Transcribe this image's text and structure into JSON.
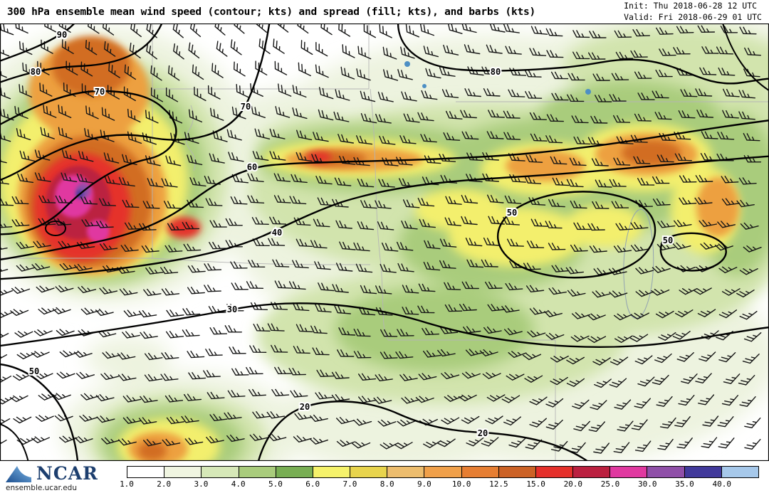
{
  "header": {
    "title": "300 hPa ensemble mean wind speed (contour; kts) and spread (fill; kts), and barbs (kts)",
    "init": "Init: Thu 2018-06-28 12 UTC",
    "valid": "Valid: Fri 2018-06-29 01 UTC"
  },
  "footer": {
    "brand": "NCAR",
    "url": "ensemble.ucar.edu"
  },
  "colorbar": {
    "labels": [
      "1.0",
      "2.0",
      "3.0",
      "4.0",
      "5.0",
      "6.0",
      "7.0",
      "8.0",
      "9.0",
      "10.0",
      "12.5",
      "15.0",
      "20.0",
      "25.0",
      "30.0",
      "35.0",
      "40.0"
    ],
    "colors": [
      "#ffffff",
      "#f0f5e1",
      "#d6e8b8",
      "#a9cc7c",
      "#78ae53",
      "#f5f26b",
      "#e8d44d",
      "#edbd6e",
      "#f0a04a",
      "#e67e33",
      "#cc6226",
      "#e5302b",
      "#bb2040",
      "#e038a0",
      "#8f4fa8",
      "#41399b",
      "#a6c8ea"
    ]
  },
  "contour_labels": [
    "90",
    "80",
    "70",
    "70",
    "80",
    "60",
    "50",
    "50",
    "40",
    "30",
    "50",
    "20",
    "20"
  ],
  "chart_data": {
    "type": "heatmap",
    "title": "300 hPa ensemble mean wind speed (contour; kts) and spread (fill; kts), and barbs (kts)",
    "level": "300 hPa",
    "init_time": "Thu 2018-06-28 12 UTC",
    "valid_time": "Fri 2018-06-29 01 UTC",
    "fill_variable": "ensemble spread (kts)",
    "contour_variable": "ensemble mean wind speed (kts)",
    "barb_variable": "ensemble mean wind barbs (kts)",
    "contour_levels_labeled": [
      20,
      30,
      40,
      50,
      60,
      70,
      80,
      90
    ],
    "colorbar_bins": [
      1.0,
      2.0,
      3.0,
      4.0,
      5.0,
      6.0,
      7.0,
      8.0,
      9.0,
      10.0,
      12.5,
      15.0,
      20.0,
      25.0,
      30.0,
      35.0,
      40.0
    ],
    "colorbar_colors": [
      "#ffffff",
      "#f0f5e1",
      "#d6e8b8",
      "#a9cc7c",
      "#78ae53",
      "#f5f26b",
      "#e8d44d",
      "#edbd6e",
      "#f0a04a",
      "#e67e33",
      "#cc6226",
      "#e5302b",
      "#bb2040",
      "#e038a0",
      "#8f4fa8",
      "#41399b",
      "#a6c8ea"
    ],
    "legend_position": "bottom",
    "notable_features": [
      "wind speed maximum with labeled contours to 90 kts and spread 15-30 kts over the northwest corner of the domain",
      "band of enhanced spread (6-12 kts, yellow/orange) along the northern jet axis",
      "weak mean winds (20-30 kts) and low spread (<4 kts) across the southern half",
      "closed 50 kt contours over the center-right of the domain"
    ]
  }
}
